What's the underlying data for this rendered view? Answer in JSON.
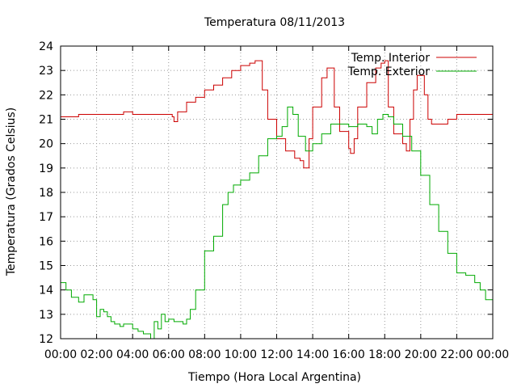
{
  "chart_data": {
    "type": "line",
    "title": "Temperatura 08/11/2013",
    "xlabel": "Tiempo (Hora Local Argentina)",
    "ylabel": "Temperatura (Grados Celsius)",
    "xlim": [
      0,
      24
    ],
    "ylim": [
      12,
      24
    ],
    "grid": true,
    "legend_position": "top-right",
    "x_ticks": [
      "00:00",
      "02:00",
      "04:00",
      "06:00",
      "08:00",
      "10:00",
      "12:00",
      "14:00",
      "16:00",
      "18:00",
      "20:00",
      "22:00",
      "00:00"
    ],
    "y_ticks": [
      12,
      13,
      14,
      15,
      16,
      17,
      18,
      19,
      20,
      21,
      22,
      23,
      24
    ],
    "series": [
      {
        "name": "Temp. Interior",
        "color": "#cc0000",
        "x": [
          0,
          0.5,
          1,
          2,
          3,
          3.5,
          4,
          5,
          6,
          6.2,
          6.3,
          6.5,
          7,
          7.5,
          8,
          8.5,
          9,
          9.5,
          10,
          10.5,
          10.8,
          11,
          11.2,
          11.5,
          12,
          12.5,
          13,
          13.3,
          13.5,
          13.8,
          14,
          14.5,
          14.8,
          15,
          15.2,
          15.5,
          16,
          16.1,
          16.3,
          16.5,
          17,
          17.5,
          17.8,
          18,
          18.2,
          18.5,
          19,
          19.2,
          19.4,
          19.6,
          19.8,
          20,
          20.2,
          20.4,
          20.6,
          21,
          21.5,
          22,
          23,
          24
        ],
        "y": [
          21.1,
          21.1,
          21.2,
          21.2,
          21.2,
          21.3,
          21.2,
          21.2,
          21.2,
          21.1,
          20.9,
          21.3,
          21.7,
          21.9,
          22.2,
          22.4,
          22.7,
          23.0,
          23.2,
          23.3,
          23.4,
          23.4,
          22.2,
          21.0,
          20.2,
          19.7,
          19.4,
          19.3,
          19.0,
          20.2,
          21.5,
          22.7,
          23.1,
          23.1,
          21.5,
          20.5,
          19.8,
          19.6,
          20.2,
          21.5,
          22.5,
          23.1,
          23.3,
          23.4,
          21.5,
          20.4,
          20.0,
          19.7,
          21.0,
          22.2,
          22.8,
          22.8,
          22.0,
          21.0,
          20.8,
          20.8,
          21.0,
          21.2,
          21.2,
          21.2
        ]
      },
      {
        "name": "Temp. Exterior",
        "color": "#00aa00",
        "x": [
          0,
          0.3,
          0.6,
          1,
          1.3,
          1.5,
          1.8,
          2,
          2.2,
          2.4,
          2.6,
          2.8,
          3,
          3.3,
          3.5,
          4,
          4.3,
          4.6,
          5,
          5.2,
          5.4,
          5.6,
          5.8,
          6,
          6.3,
          6.5,
          6.8,
          7,
          7.2,
          7.5,
          8,
          8.5,
          9,
          9.3,
          9.6,
          10,
          10.5,
          11,
          11.5,
          12,
          12.3,
          12.6,
          12.9,
          13.2,
          13.6,
          14,
          14.5,
          15,
          15.5,
          16,
          16.5,
          17,
          17.3,
          17.6,
          17.9,
          18.2,
          18.5,
          19,
          19.5,
          20,
          20.5,
          21,
          21.5,
          22,
          22.5,
          23,
          23.3,
          23.6,
          24
        ],
        "y": [
          14.3,
          14.0,
          13.7,
          13.5,
          13.8,
          13.8,
          13.6,
          12.9,
          13.2,
          13.1,
          12.9,
          12.7,
          12.6,
          12.5,
          12.6,
          12.4,
          12.3,
          12.2,
          12.0,
          12.7,
          12.4,
          13.0,
          12.7,
          12.8,
          12.7,
          12.7,
          12.6,
          12.8,
          13.2,
          14.0,
          15.6,
          16.2,
          17.5,
          18.0,
          18.3,
          18.5,
          18.8,
          19.5,
          20.2,
          20.3,
          20.7,
          21.5,
          21.2,
          20.3,
          19.7,
          20.0,
          20.4,
          20.8,
          20.8,
          20.7,
          20.8,
          20.7,
          20.4,
          21.0,
          21.2,
          21.1,
          20.8,
          20.3,
          19.7,
          18.7,
          17.5,
          16.4,
          15.5,
          14.7,
          14.6,
          14.3,
          14.0,
          13.6,
          13.6
        ]
      }
    ]
  }
}
